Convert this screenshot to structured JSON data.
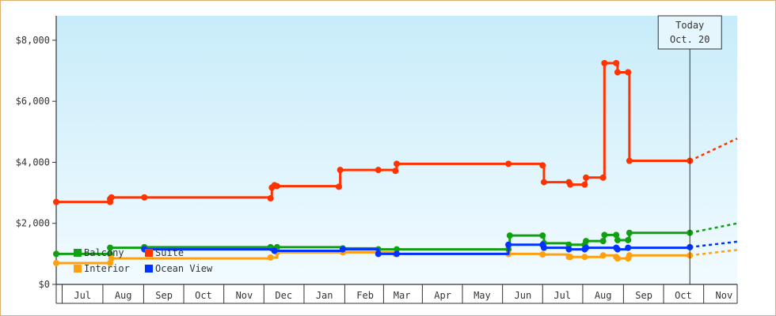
{
  "chart_data": {
    "type": "line",
    "title": "",
    "xlabel": "",
    "ylabel": "",
    "x_range": [
      "2020-06-25",
      "2021-11-25"
    ],
    "ylim": [
      0,
      8800
    ],
    "y_ticks": [
      0,
      2000,
      4000,
      6000,
      8000
    ],
    "y_tick_labels": [
      "$0",
      "$2,000",
      "$4,000",
      "$6,000",
      "$8,000"
    ],
    "x_tick_labels": [
      "Jul",
      "Aug",
      "Sep",
      "Oct",
      "Nov",
      "Dec",
      "Jan",
      "Feb",
      "Mar",
      "Apr",
      "May",
      "Jun",
      "Jul",
      "Aug",
      "Sep",
      "Oct",
      "Nov"
    ],
    "x_tick_dates": [
      "2020-07-15",
      "2020-08-15",
      "2020-09-15",
      "2020-10-15",
      "2020-11-15",
      "2020-12-15",
      "2021-01-15",
      "2021-02-15",
      "2021-03-15",
      "2021-04-15",
      "2021-05-15",
      "2021-06-15",
      "2021-07-15",
      "2021-08-15",
      "2021-09-15",
      "2021-10-15",
      "2021-11-15"
    ],
    "grid": false,
    "background": "gradient sky blue",
    "legend_position": "bottom-left",
    "today_marker": {
      "line1": "Today",
      "line2": "Oct. 20",
      "date": "2021-10-20"
    },
    "series": [
      {
        "name": "Suite",
        "color": "#ff3300",
        "points": [
          [
            "2020-06-25",
            2700
          ],
          [
            "2020-08-05",
            2700
          ],
          [
            "2020-08-05",
            2800
          ],
          [
            "2020-08-06",
            2850
          ],
          [
            "2020-08-31",
            2850
          ],
          [
            "2020-12-05",
            2820
          ],
          [
            "2020-12-06",
            3170
          ],
          [
            "2020-12-08",
            3250
          ],
          [
            "2020-12-10",
            3220
          ],
          [
            "2021-01-26",
            3200
          ],
          [
            "2021-01-27",
            3750
          ],
          [
            "2021-02-25",
            3750
          ],
          [
            "2021-03-10",
            3720
          ],
          [
            "2021-03-11",
            3950
          ],
          [
            "2021-06-04",
            3950
          ],
          [
            "2021-06-30",
            3900
          ],
          [
            "2021-07-01",
            3350
          ],
          [
            "2021-07-20",
            3350
          ],
          [
            "2021-07-21",
            3270
          ],
          [
            "2021-08-01",
            3270
          ],
          [
            "2021-08-02",
            3500
          ],
          [
            "2021-08-15",
            3500
          ],
          [
            "2021-08-16",
            7250
          ],
          [
            "2021-08-25",
            7250
          ],
          [
            "2021-08-26",
            6950
          ],
          [
            "2021-09-03",
            6950
          ],
          [
            "2021-09-04",
            4050
          ],
          [
            "2021-10-20",
            4050
          ]
        ],
        "projection": [
          [
            "2021-10-20",
            4050
          ],
          [
            "2021-11-25",
            4780
          ]
        ]
      },
      {
        "name": "Balcony",
        "color": "#11a011",
        "points": [
          [
            "2020-06-25",
            1000
          ],
          [
            "2020-08-05",
            1000
          ],
          [
            "2020-08-05",
            1200
          ],
          [
            "2020-08-31",
            1220
          ],
          [
            "2020-12-05",
            1220
          ],
          [
            "2020-12-06",
            1180
          ],
          [
            "2020-12-10",
            1220
          ],
          [
            "2021-01-29",
            1180
          ],
          [
            "2021-02-25",
            1150
          ],
          [
            "2021-03-11",
            1150
          ],
          [
            "2021-06-04",
            1150
          ],
          [
            "2021-06-05",
            1600
          ],
          [
            "2021-06-30",
            1600
          ],
          [
            "2021-07-01",
            1350
          ],
          [
            "2021-07-20",
            1300
          ],
          [
            "2021-08-01",
            1300
          ],
          [
            "2021-08-02",
            1420
          ],
          [
            "2021-08-15",
            1420
          ],
          [
            "2021-08-16",
            1620
          ],
          [
            "2021-08-25",
            1620
          ],
          [
            "2021-08-26",
            1450
          ],
          [
            "2021-09-03",
            1450
          ],
          [
            "2021-09-04",
            1690
          ],
          [
            "2021-10-20",
            1690
          ]
        ],
        "projection": [
          [
            "2021-10-20",
            1690
          ],
          [
            "2021-11-25",
            2000
          ]
        ]
      },
      {
        "name": "Interior",
        "color": "#ffa011",
        "points": [
          [
            "2020-06-25",
            700
          ],
          [
            "2020-08-05",
            700
          ],
          [
            "2020-08-06",
            850
          ],
          [
            "2020-12-05",
            880
          ],
          [
            "2020-12-10",
            1050
          ],
          [
            "2021-01-29",
            1050
          ],
          [
            "2021-03-10",
            1000
          ],
          [
            "2021-06-04",
            1000
          ],
          [
            "2021-06-30",
            980
          ],
          [
            "2021-07-20",
            900
          ],
          [
            "2021-07-21",
            900
          ],
          [
            "2021-08-01",
            900
          ],
          [
            "2021-08-15",
            950
          ],
          [
            "2021-08-25",
            900
          ],
          [
            "2021-08-26",
            850
          ],
          [
            "2021-09-03",
            850
          ],
          [
            "2021-09-04",
            950
          ],
          [
            "2021-10-20",
            950
          ]
        ],
        "projection": [
          [
            "2021-10-20",
            950
          ],
          [
            "2021-11-25",
            1130
          ]
        ]
      },
      {
        "name": "Ocean View",
        "color": "#0033ff",
        "points": [
          [
            "2020-08-31",
            1150
          ],
          [
            "2020-12-08",
            1100
          ],
          [
            "2021-01-29",
            1150
          ],
          [
            "2021-02-25",
            1000
          ],
          [
            "2021-03-11",
            1000
          ],
          [
            "2021-06-04",
            1300
          ],
          [
            "2021-06-30",
            1300
          ],
          [
            "2021-07-01",
            1200
          ],
          [
            "2021-07-20",
            1150
          ],
          [
            "2021-08-01",
            1150
          ],
          [
            "2021-08-02",
            1200
          ],
          [
            "2021-08-25",
            1200
          ],
          [
            "2021-08-26",
            1150
          ],
          [
            "2021-09-03",
            1200
          ],
          [
            "2021-10-20",
            1220
          ]
        ],
        "projection": [
          [
            "2021-10-20",
            1220
          ],
          [
            "2021-11-25",
            1400
          ]
        ]
      }
    ]
  }
}
